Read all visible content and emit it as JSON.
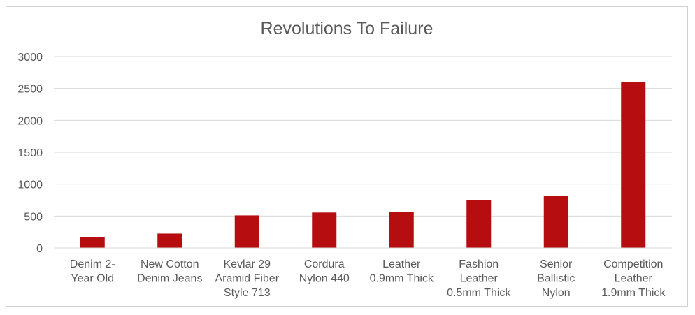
{
  "chart_data": {
    "type": "bar",
    "title": "Revolutions To Failure",
    "xlabel": "",
    "ylabel": "",
    "ylim": [
      0,
      3000
    ],
    "yticks": [
      0,
      500,
      1000,
      1500,
      2000,
      2500,
      3000
    ],
    "grid": true,
    "legend": "none",
    "bar_color": "#b50d10",
    "categories": [
      [
        "Denim 2-",
        "Year Old"
      ],
      [
        "New Cotton",
        "Denim Jeans"
      ],
      [
        "Kevlar 29",
        "Aramid Fiber",
        "Style 713"
      ],
      [
        "Cordura",
        "Nylon 440"
      ],
      [
        "Leather",
        "0.9mm Thick"
      ],
      [
        "Fashion",
        "Leather",
        "0.5mm Thick"
      ],
      [
        "Senior",
        "Ballistic",
        "Nylon"
      ],
      [
        "Competition",
        "Leather",
        "1.9mm Thick"
      ]
    ],
    "values": [
      170,
      225,
      510,
      555,
      565,
      750,
      815,
      2600
    ]
  }
}
